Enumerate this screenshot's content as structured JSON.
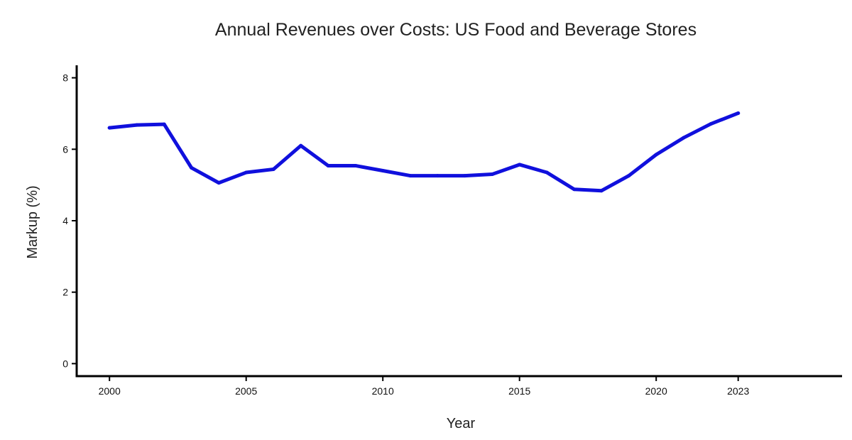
{
  "chart_data": {
    "type": "line",
    "title": "Annual Revenues over Costs: US Food and Beverage Stores",
    "xlabel": "Year",
    "ylabel": "Markup (%)",
    "xlim": [
      1998.8,
      2026.8
    ],
    "ylim": [
      -0.35,
      8.35
    ],
    "xticks": [
      2000,
      2005,
      2010,
      2015,
      2020,
      2023
    ],
    "yticks": [
      0,
      2,
      4,
      6,
      8
    ],
    "grid": false,
    "legend": "none",
    "series": [
      {
        "color": "#1010dd",
        "x": [
          2000,
          2001,
          2002,
          2003,
          2004,
          2005,
          2006,
          2007,
          2008,
          2009,
          2010,
          2011,
          2012,
          2013,
          2014,
          2015,
          2016,
          2017,
          2018,
          2019,
          2020,
          2021,
          2022,
          2023
        ],
        "y": [
          6.6,
          6.68,
          6.7,
          5.48,
          5.06,
          5.35,
          5.44,
          6.1,
          5.54,
          5.54,
          5.4,
          5.26,
          5.26,
          5.26,
          5.3,
          5.57,
          5.35,
          4.88,
          4.84,
          5.26,
          5.85,
          6.32,
          6.71,
          7.01
        ]
      }
    ]
  }
}
